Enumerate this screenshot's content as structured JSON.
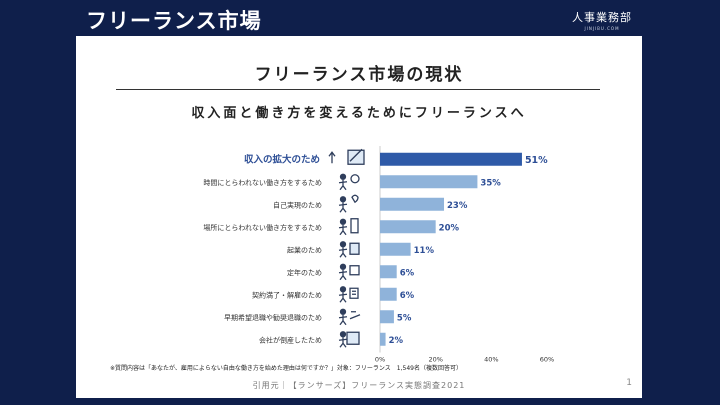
{
  "header": {
    "title": "フリーランス市場",
    "brand_name": "人事業務部",
    "brand_sub": "JINJIBU.COM"
  },
  "main": {
    "title": "フリーランス市場の現状",
    "subtitle": "収入面と働き方を変えるためにフリーランスへ"
  },
  "chart_data": {
    "type": "bar",
    "orientation": "horizontal",
    "categories": [
      "収入の拡大のため",
      "時間にとらわれない働き方をするため",
      "自己実現のため",
      "場所にとらわれない働き方をするため",
      "起業のため",
      "定年のため",
      "契約満了・解雇のため",
      "早期希望退職や勧奨退職のため",
      "会社が倒産したため"
    ],
    "values": [
      51,
      35,
      23,
      20,
      11,
      6,
      6,
      5,
      2
    ],
    "value_labels": [
      "51%",
      "35%",
      "23%",
      "20%",
      "11%",
      "6%",
      "6%",
      "5%",
      "2%"
    ],
    "highlight_index": 0,
    "xlim": [
      0,
      60
    ],
    "xticks": [
      0,
      20,
      40,
      60
    ],
    "xtick_labels": [
      "0%",
      "20%",
      "40%",
      "60%"
    ],
    "colors": {
      "highlight": "#2e5aa8",
      "normal": "#8fb3da",
      "highlight_text": "#2e4f96",
      "label_text": "#333333"
    },
    "icons": [
      "rising-chart-icon",
      "person-clock-icon",
      "person-idea-icon",
      "person-door-icon",
      "person-building-icon",
      "person-calendar-icon",
      "termination-icon",
      "retirement-icon",
      "bankruptcy-icon"
    ]
  },
  "footer": {
    "footnote": "※質問内容は「あなたが、雇用によらない自由な働き方を始めた理由は何ですか？」対象：フリーランス　1,549名（複数回答可）",
    "source": "引用元｜【ランサーズ】フリーランス実態調査2021",
    "page_number": "1"
  }
}
